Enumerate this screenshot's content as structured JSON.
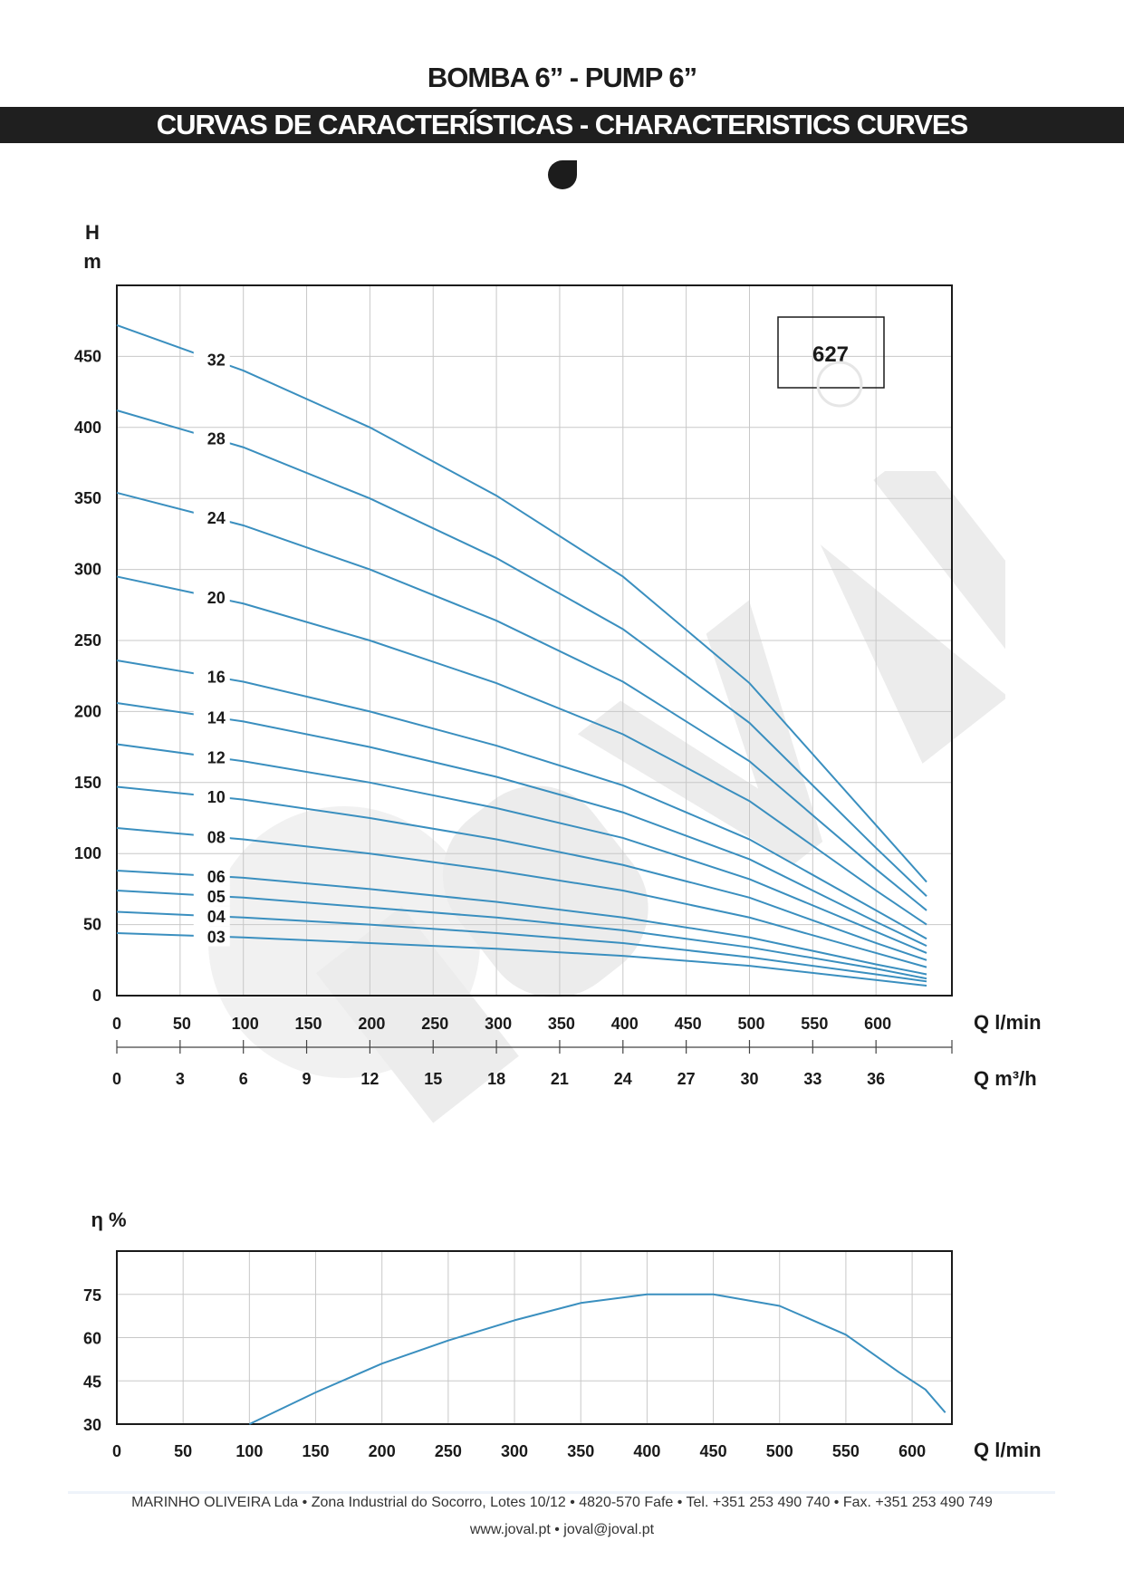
{
  "header": {
    "title": "BOMBA 6” - PUMP 6”",
    "subtitle": "CURVAS DE CARACTERÍSTICAS - CHARACTERISTICS CURVES"
  },
  "colors": {
    "curve": "#3a8fbf",
    "grid": "#c8c8c8",
    "band": "#1f1f1f",
    "watermark": "#ededed"
  },
  "icons": {
    "logo": "drop-icon",
    "watermark": "joval-watermark"
  },
  "chart_data": [
    {
      "type": "line",
      "title": "",
      "ylabel": "H",
      "yunit": "m",
      "xlabel": "Q l/min",
      "x2label": "Q m³/h",
      "model": "627",
      "xlim": [
        0,
        660
      ],
      "ylim": [
        0,
        500
      ],
      "xticks": [
        0,
        50,
        100,
        150,
        200,
        250,
        300,
        350,
        400,
        450,
        500,
        550,
        600
      ],
      "x2ticks": [
        0,
        3,
        6,
        9,
        12,
        15,
        18,
        21,
        24,
        27,
        30,
        33,
        36
      ],
      "yticks": [
        0,
        50,
        100,
        150,
        200,
        250,
        300,
        350,
        400,
        450
      ],
      "grid": true,
      "x": [
        0,
        100,
        200,
        300,
        400,
        500,
        600,
        640
      ],
      "series": [
        {
          "name": "32",
          "values": [
            472,
            440,
            400,
            352,
            295,
            220,
            120,
            80
          ]
        },
        {
          "name": "28",
          "values": [
            412,
            386,
            350,
            308,
            258,
            192,
            104,
            70
          ]
        },
        {
          "name": "24",
          "values": [
            354,
            331,
            300,
            264,
            221,
            165,
            89,
            60
          ]
        },
        {
          "name": "20",
          "values": [
            295,
            276,
            250,
            220,
            184,
            137,
            74,
            50
          ]
        },
        {
          "name": "16",
          "values": [
            236,
            221,
            200,
            176,
            148,
            110,
            60,
            40
          ]
        },
        {
          "name": "14",
          "values": [
            206,
            193,
            175,
            154,
            129,
            96,
            52,
            35
          ]
        },
        {
          "name": "12",
          "values": [
            177,
            165,
            150,
            132,
            111,
            82,
            45,
            30
          ]
        },
        {
          "name": "10",
          "values": [
            147,
            138,
            125,
            110,
            92,
            69,
            37,
            25
          ]
        },
        {
          "name": "08",
          "values": [
            118,
            110,
            100,
            88,
            74,
            55,
            30,
            20
          ]
        },
        {
          "name": "06",
          "values": [
            88,
            83,
            75,
            66,
            55,
            41,
            22,
            15
          ]
        },
        {
          "name": "05",
          "values": [
            74,
            69,
            62,
            55,
            46,
            34,
            19,
            12
          ]
        },
        {
          "name": "04",
          "values": [
            59,
            55,
            50,
            44,
            37,
            27,
            15,
            10
          ]
        },
        {
          "name": "03",
          "values": [
            44,
            41,
            37,
            33,
            28,
            21,
            11,
            7
          ]
        }
      ]
    },
    {
      "type": "line",
      "title": "",
      "ylabel": "η %",
      "xlabel": "Q l/min",
      "xlim": [
        0,
        630
      ],
      "ylim": [
        30,
        90
      ],
      "xticks": [
        0,
        50,
        100,
        150,
        200,
        250,
        300,
        350,
        400,
        450,
        500,
        550,
        600
      ],
      "yticks": [
        30,
        45,
        60,
        75
      ],
      "grid": true,
      "x": [
        100,
        150,
        200,
        250,
        300,
        350,
        400,
        450,
        500,
        550,
        590,
        610,
        625
      ],
      "values": [
        30,
        41,
        51,
        59,
        66,
        72,
        75,
        75,
        71,
        61,
        48,
        42,
        34
      ]
    }
  ],
  "footer": {
    "line1": "MARINHO OLIVEIRA Lda  • Zona Industrial do Socorro, Lotes 10/12  •  4820-570 Fafe  •  Tel. +351 253 490 740 •  Fax. +351 253 490 749",
    "line2": "www.joval.pt • joval@joval.pt"
  }
}
